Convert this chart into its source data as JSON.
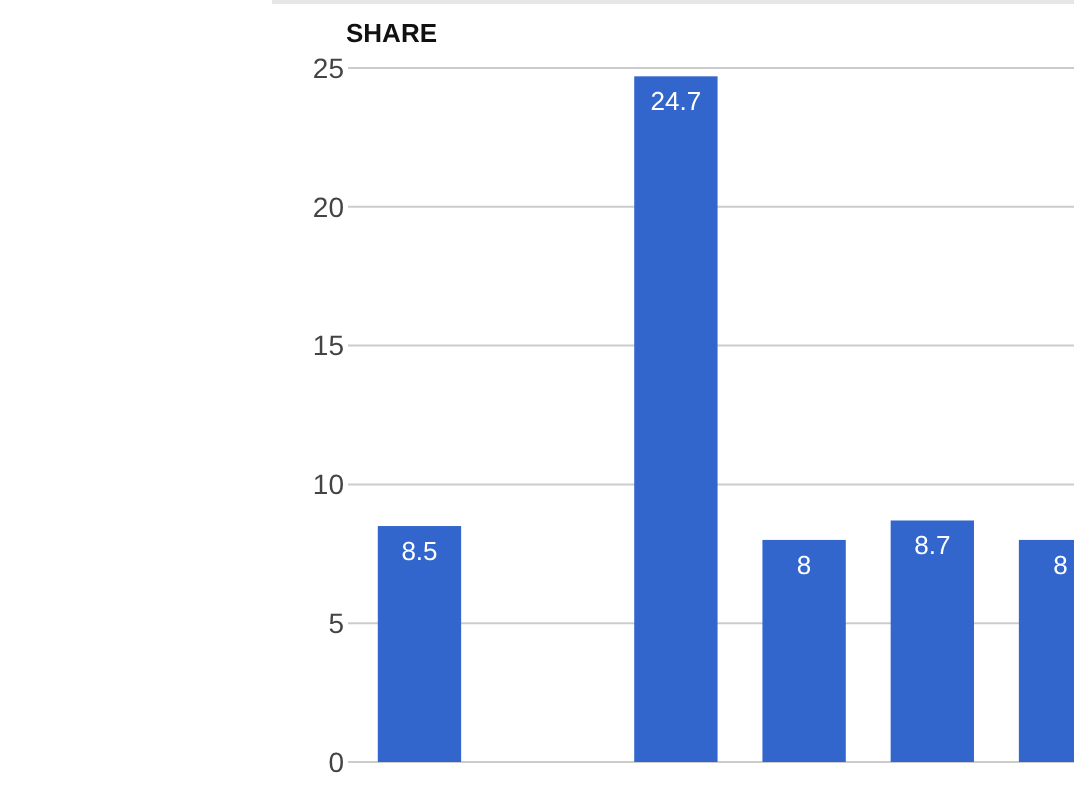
{
  "chart_data": {
    "type": "bar",
    "title": "SHARE",
    "categories": [
      null,
      null,
      null,
      null,
      null,
      null
    ],
    "values": [
      8.5,
      null,
      24.7,
      8,
      8.7,
      8
    ],
    "color": "#3366cc",
    "ylim": [
      0,
      25
    ],
    "yticks": [
      0,
      5,
      10,
      15,
      20,
      25
    ],
    "grid": "y",
    "data_labels": true
  }
}
